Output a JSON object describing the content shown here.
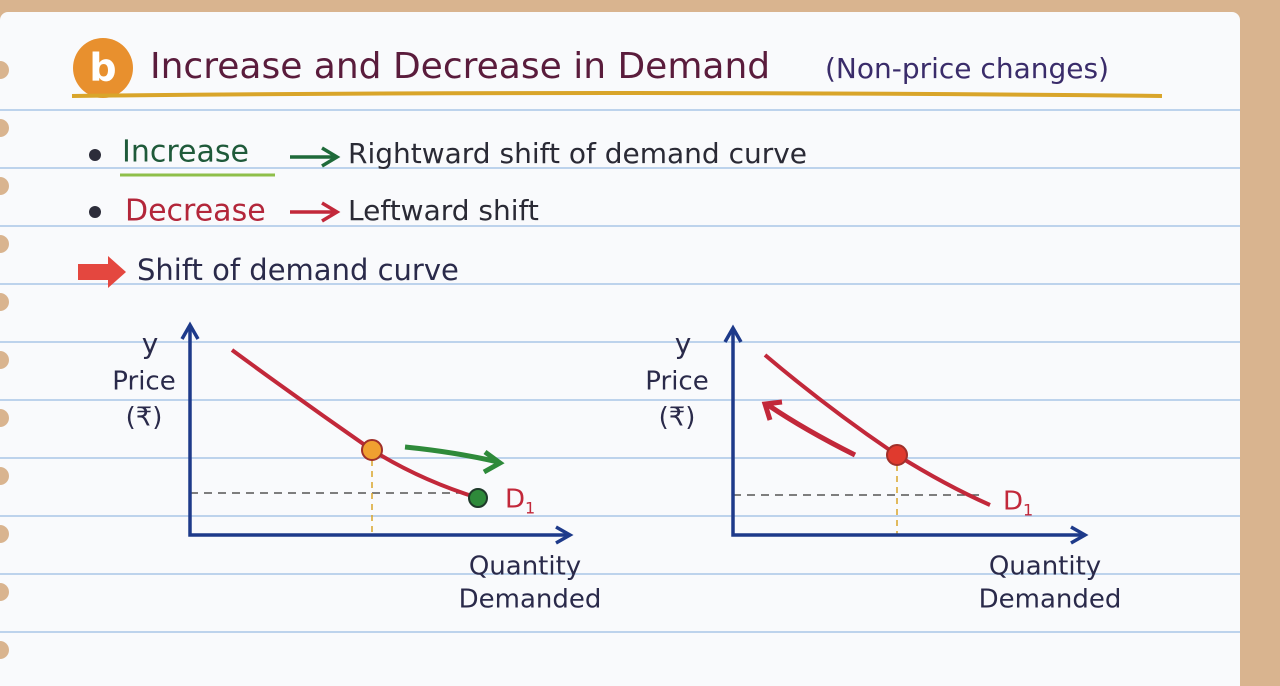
{
  "header": {
    "badge": "b",
    "title": "Increase and Decrease in Demand",
    "subtitle": "(Non-price changes)"
  },
  "bullets": [
    {
      "term": "Increase",
      "text": "Rightward shift of demand curve"
    },
    {
      "term": "Decrease",
      "text": "Leftward shift"
    }
  ],
  "note": "Shift of demand curve",
  "diagrams": [
    {
      "y_axis": "y",
      "y_label": "Price",
      "y_unit": "(₹)",
      "x_label_1": "Quantity",
      "x_label_2": "Demanded",
      "curve": "D",
      "curve_sub": "1"
    },
    {
      "y_axis": "y",
      "y_label": "Price",
      "y_unit": "(₹)",
      "x_label_1": "Quantity",
      "x_label_2": "Demanded",
      "curve": "D",
      "curve_sub": "1"
    }
  ]
}
